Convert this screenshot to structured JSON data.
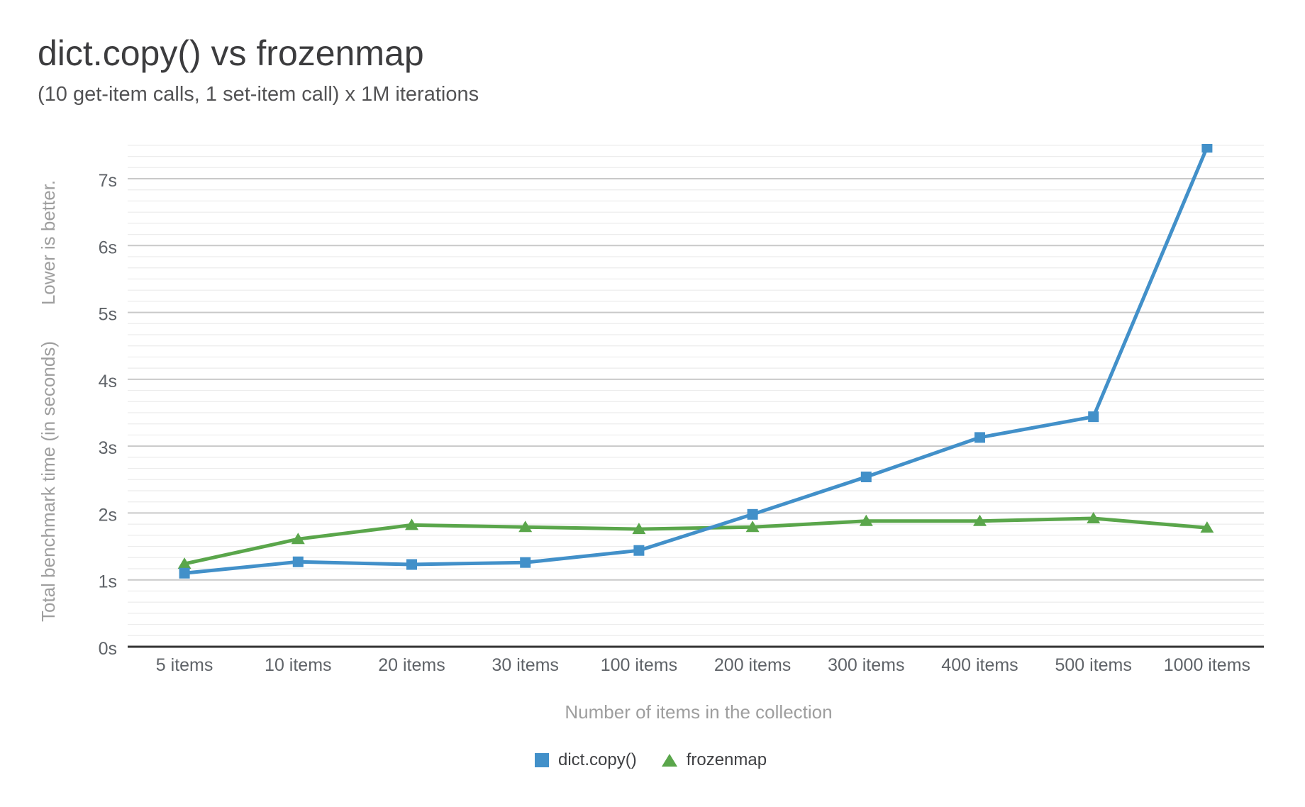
{
  "chart_data": {
    "type": "line",
    "title": "dict.copy() vs frozenmap",
    "subtitle": "(10 get-item calls, 1 set-item call) x 1M iterations",
    "categories": [
      "5 items",
      "10 items",
      "20 items",
      "30 items",
      "100 items",
      "200 items",
      "300 items",
      "400 items",
      "500 items",
      "1000 items"
    ],
    "series": [
      {
        "name": "dict.copy()",
        "marker": "square",
        "color": "#4290c9",
        "values": [
          1.1,
          1.27,
          1.23,
          1.26,
          1.44,
          1.98,
          2.54,
          3.13,
          3.44,
          7.47
        ]
      },
      {
        "name": "frozenmap",
        "marker": "triangle",
        "color": "#5aa64b",
        "values": [
          1.24,
          1.61,
          1.82,
          1.79,
          1.76,
          1.79,
          1.88,
          1.88,
          1.92,
          1.78
        ]
      }
    ],
    "xlabel": "Number of items in the collection",
    "ylabel": "Total benchmark time (in seconds)",
    "ylabel_note": "Lower is better.",
    "yticks": [
      "0s",
      "1s",
      "2s",
      "3s",
      "4s",
      "5s",
      "6s",
      "7s"
    ],
    "ylim": [
      0,
      7.52
    ],
    "grid": {
      "horizontal": true,
      "vertical": false,
      "minor_per_major": 5
    },
    "legend_position": "bottom",
    "axis_colors": {
      "tick_label": "#5f6368",
      "axis_title": "#9e9e9e",
      "baseline": "#333333",
      "major_grid": "#c9c9c9",
      "minor_grid": "#ececec"
    }
  }
}
